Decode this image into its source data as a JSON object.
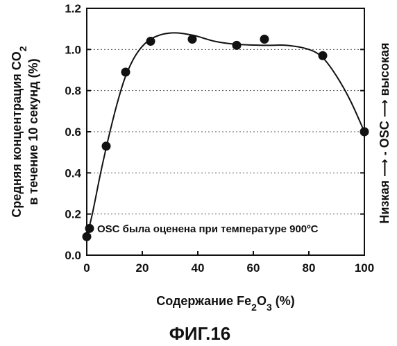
{
  "chart_data": {
    "type": "scatter",
    "xlabel": "Содержание Fe2O3 (%)",
    "xlabel_parts": {
      "pre": "Содержание Fe",
      "sub1": "2",
      "mid": "O",
      "sub2": "3",
      "post": " (%)"
    },
    "ylabel_line1": "Средняя концентрация CO",
    "ylabel_line1_sub": "2",
    "ylabel_line2": "в течение 10 секунд (%)",
    "right_label": "Низкая ⟶ - OSC ⟶ высокая",
    "annotation": "OSC была оценена при температуре 900ºC",
    "figure_caption": "ФИГ.16",
    "xlim": [
      0,
      100
    ],
    "ylim": [
      0.0,
      1.2
    ],
    "xticks": [
      0,
      20,
      40,
      60,
      80,
      100
    ],
    "yticks": [
      0.0,
      0.2,
      0.4,
      0.6,
      0.8,
      1.0,
      1.2
    ],
    "ytick_labels": [
      "0.0",
      "0.2",
      "0.4",
      "0.6",
      "0.8",
      "1.0",
      "1.2"
    ],
    "grid": "horizontal dotted",
    "points": [
      {
        "x": 0,
        "y": 0.09
      },
      {
        "x": 1,
        "y": 0.13
      },
      {
        "x": 7,
        "y": 0.53
      },
      {
        "x": 14,
        "y": 0.89
      },
      {
        "x": 23,
        "y": 1.04
      },
      {
        "x": 38,
        "y": 1.05
      },
      {
        "x": 54,
        "y": 1.02
      },
      {
        "x": 64,
        "y": 1.05
      },
      {
        "x": 85,
        "y": 0.97
      },
      {
        "x": 100,
        "y": 0.6
      }
    ],
    "fit_curve": [
      {
        "x": 0,
        "y": 0.09
      },
      {
        "x": 2,
        "y": 0.2
      },
      {
        "x": 5,
        "y": 0.4
      },
      {
        "x": 8,
        "y": 0.58
      },
      {
        "x": 11,
        "y": 0.74
      },
      {
        "x": 14,
        "y": 0.87
      },
      {
        "x": 18,
        "y": 0.98
      },
      {
        "x": 23,
        "y": 1.05
      },
      {
        "x": 30,
        "y": 1.08
      },
      {
        "x": 38,
        "y": 1.07
      },
      {
        "x": 46,
        "y": 1.04
      },
      {
        "x": 54,
        "y": 1.025
      },
      {
        "x": 64,
        "y": 1.02
      },
      {
        "x": 72,
        "y": 1.02
      },
      {
        "x": 80,
        "y": 1.0
      },
      {
        "x": 85,
        "y": 0.96
      },
      {
        "x": 90,
        "y": 0.87
      },
      {
        "x": 95,
        "y": 0.75
      },
      {
        "x": 100,
        "y": 0.6
      }
    ]
  }
}
